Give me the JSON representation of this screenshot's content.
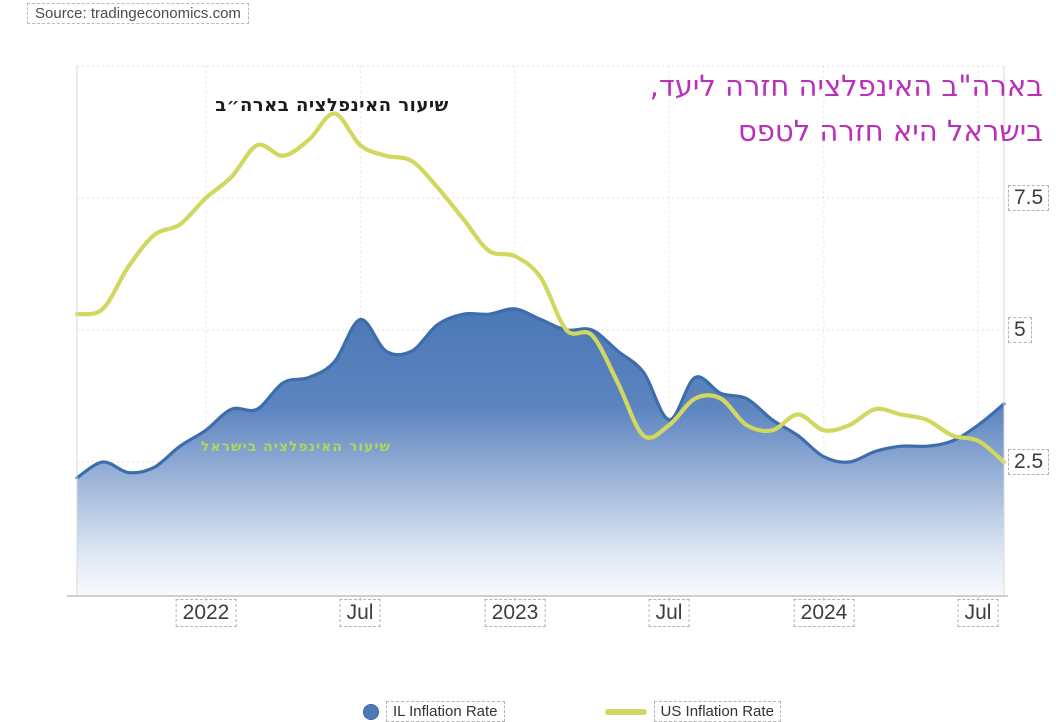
{
  "source": {
    "label": "Source: tradingeconomics.com"
  },
  "annotations": {
    "us_line_label": "שיעור האינפלציה בארה״ב",
    "il_line_label": "שיעור האינפלציה בישראל",
    "note_line1": "בארה\"ב האינפלציה חזרה ליעד,",
    "note_line2": "בישראל היא חזרה לטפס",
    "note_color": "#bb30bb"
  },
  "legend": [
    {
      "label": "IL Inflation Rate",
      "swatch": "dot",
      "color": "#4a7ab8"
    },
    {
      "label": "US Inflation Rate",
      "swatch": "line",
      "color": "#d2d75f"
    }
  ],
  "chart_data": {
    "type": "area",
    "title": "",
    "x_unit": "month",
    "x_monthly": [
      "2021-08",
      "2021-09",
      "2021-10",
      "2021-11",
      "2021-12",
      "2022-01",
      "2022-02",
      "2022-03",
      "2022-04",
      "2022-05",
      "2022-06",
      "2022-07",
      "2022-08",
      "2022-09",
      "2022-10",
      "2022-11",
      "2022-12",
      "2023-01",
      "2023-02",
      "2023-03",
      "2023-04",
      "2023-05",
      "2023-06",
      "2023-07",
      "2023-08",
      "2023-09",
      "2023-10",
      "2023-11",
      "2023-12",
      "2024-01",
      "2024-02",
      "2024-03",
      "2024-04",
      "2024-05",
      "2024-06",
      "2024-07",
      "2024-08"
    ],
    "x_ticks": [
      {
        "label": "2022",
        "index": 5
      },
      {
        "label": "Jul",
        "index": 11
      },
      {
        "label": "2023",
        "index": 17
      },
      {
        "label": "Jul",
        "index": 23
      },
      {
        "label": "2024",
        "index": 29
      },
      {
        "label": "Jul",
        "index": 35
      }
    ],
    "y_axis": {
      "ticks": [
        7.5,
        5,
        2.5
      ],
      "range": [
        0,
        10
      ],
      "side": "right"
    },
    "grid": true,
    "legend_position": "bottom",
    "series": [
      {
        "name": "IL Inflation Rate",
        "type": "area",
        "color": "#3d6dac",
        "values": [
          2.2,
          2.5,
          2.3,
          2.4,
          2.8,
          3.1,
          3.5,
          3.5,
          4.0,
          4.1,
          4.4,
          5.2,
          4.6,
          4.6,
          5.1,
          5.3,
          5.3,
          5.4,
          5.2,
          5.0,
          5.0,
          4.6,
          4.2,
          3.3,
          4.1,
          3.8,
          3.7,
          3.3,
          3.0,
          2.6,
          2.5,
          2.7,
          2.8,
          2.8,
          2.9,
          3.2,
          3.6
        ]
      },
      {
        "name": "US Inflation Rate",
        "type": "line",
        "color": "#d2d75f",
        "values": [
          5.3,
          5.4,
          6.2,
          6.8,
          7.0,
          7.5,
          7.9,
          8.5,
          8.3,
          8.6,
          9.1,
          8.5,
          8.3,
          8.2,
          7.7,
          7.1,
          6.5,
          6.4,
          6.0,
          5.0,
          4.9,
          4.0,
          3.0,
          3.2,
          3.7,
          3.7,
          3.2,
          3.1,
          3.4,
          3.1,
          3.2,
          3.5,
          3.4,
          3.3,
          3.0,
          2.9,
          2.5
        ]
      }
    ]
  }
}
